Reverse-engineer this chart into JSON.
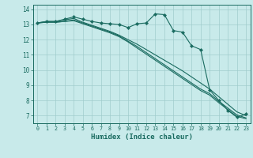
{
  "title": "",
  "xlabel": "Humidex (Indice chaleur)",
  "ylabel": "",
  "bg_color": "#c8eaea",
  "grid_color": "#a0cccc",
  "line_color": "#1a6b60",
  "xlim": [
    -0.5,
    23.5
  ],
  "ylim": [
    6.5,
    14.3
  ],
  "xticks": [
    0,
    1,
    2,
    3,
    4,
    5,
    6,
    7,
    8,
    9,
    10,
    11,
    12,
    13,
    14,
    15,
    16,
    17,
    18,
    19,
    20,
    21,
    22,
    23
  ],
  "yticks": [
    7,
    8,
    9,
    10,
    11,
    12,
    13,
    14
  ],
  "series": [
    [
      13.1,
      13.2,
      13.2,
      13.35,
      13.5,
      13.35,
      13.2,
      13.1,
      13.05,
      13.0,
      12.8,
      13.05,
      13.1,
      13.7,
      13.65,
      12.6,
      12.5,
      11.6,
      11.35,
      8.7,
      8.0,
      7.35,
      6.9,
      7.1
    ],
    [
      13.1,
      13.2,
      13.2,
      13.3,
      13.4,
      13.15,
      12.95,
      12.75,
      12.55,
      12.3,
      12.0,
      11.7,
      11.35,
      11.0,
      10.65,
      10.3,
      9.95,
      9.55,
      9.15,
      8.75,
      8.25,
      7.75,
      7.25,
      7.0
    ],
    [
      13.1,
      13.15,
      13.15,
      13.2,
      13.3,
      13.1,
      12.9,
      12.7,
      12.5,
      12.25,
      11.9,
      11.55,
      11.15,
      10.75,
      10.35,
      9.95,
      9.55,
      9.15,
      8.75,
      8.45,
      7.95,
      7.5,
      7.05,
      6.85
    ],
    [
      13.1,
      13.15,
      13.15,
      13.2,
      13.25,
      13.05,
      12.85,
      12.65,
      12.45,
      12.2,
      11.85,
      11.45,
      11.05,
      10.65,
      10.25,
      9.85,
      9.45,
      9.05,
      8.65,
      8.35,
      7.85,
      7.4,
      6.95,
      6.8
    ]
  ]
}
